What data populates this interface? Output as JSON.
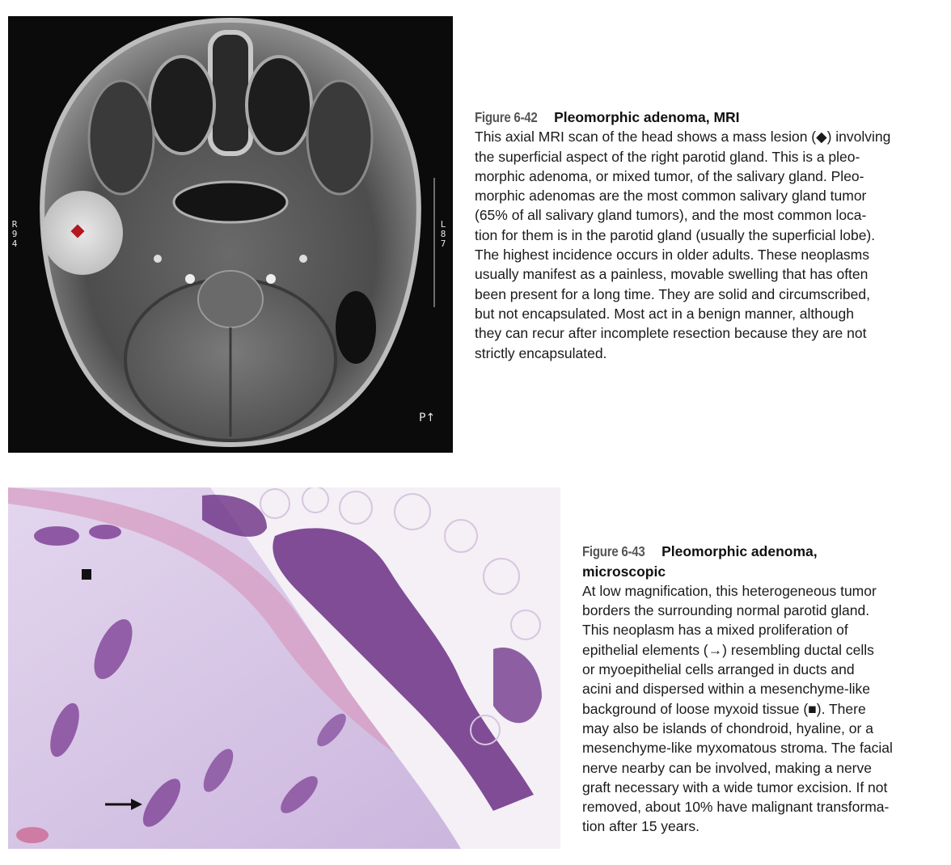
{
  "figures": [
    {
      "number": "Figure 6-42",
      "title": "Pleomorphic adenoma, MRI",
      "body": "This axial MRI scan of the head shows a mass lesion (◆) involving\nthe superficial aspect of the right parotid gland. This is a pleo-\nmorphic adenoma, or mixed tumor, of the salivary gland. Pleo-\nmorphic adenomas are the most common salivary gland tumor\n(65% of all salivary gland tumors), and the most common loca-\ntion for them is in the parotid gland (usually the superficial lobe).\nThe highest incidence occurs in older adults. These neoplasms\nusually manifest as a painless, movable swelling that has often\nbeen present for a long time. They are solid and circumscribed,\nbut not encapsulated. Most act in a benign manner, although\nthey can recur after incomplete resection because they are not\nstrictly encapsulated.",
      "image": {
        "side_label_left": "R\n9\n4",
        "side_label_right": "L\n8\n7",
        "orientation_label": "P↑",
        "marker_color": "#b3161e"
      }
    },
    {
      "number": "Figure 6-43",
      "title": "Pleomorphic adenoma,\nmicroscopic",
      "body": "At low magnification, this heterogeneous tumor\nborders the surrounding normal parotid gland.\nThis neoplasm has a mixed proliferation of\nepithelial elements (→) resembling ductal cells\nor myoepithelial cells arranged in ducts and\nacini and dispersed within a mesenchyme-like\nbackground of loose myxoid tissue (■). There\nmay also be islands of chondroid, hyaline, or a\nmesenchyme-like myxomatous stroma. The facial\nnerve nearby can be involved, making a nerve\ngraft necessary with a wide tumor excision. If not\nremoved, about 10% have malignant transforma-\ntion after 15 years."
    }
  ],
  "colors": {
    "accent": "#b3161e",
    "fig_number": "#555555",
    "stroma": "#d6c4e3",
    "glandular": "#6b2f85"
  }
}
